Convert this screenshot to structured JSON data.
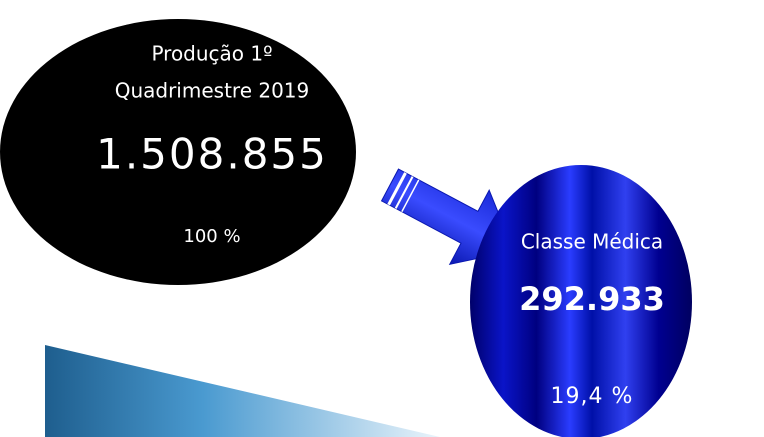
{
  "source": {
    "title_lines": [
      "Produção 1º",
      "Quadrimestre 2019"
    ],
    "value": "1.508.855",
    "share": "100 %"
  },
  "target": {
    "title": "Classe Médica",
    "value": "292.933",
    "share": "19,4 %"
  }
}
